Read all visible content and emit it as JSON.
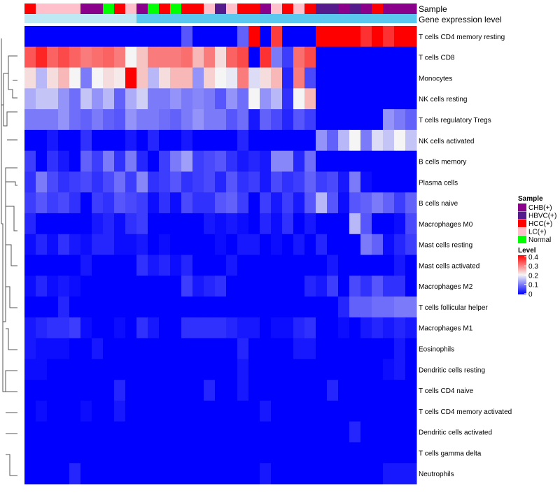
{
  "chart_data": {
    "type": "heatmap",
    "title": "",
    "annotation_labels": {
      "sample": "Sample",
      "gene": "Gene expression level"
    },
    "rows": [
      "T cells CD4 memory resting",
      "T cells CD8",
      "Monocytes",
      "NK cells resting",
      "T cells regulatory  Tregs",
      "NK cells activated",
      "B cells memory",
      "Plasma cells",
      "B cells naive",
      "Macrophages M0",
      "Mast cells resting",
      "Mast cells activated",
      "Macrophages M2",
      "T cells follicular helper",
      "Macrophages M1",
      "Eosinophils",
      "Dendritic cells resting",
      "T cells CD4 naive",
      "T cells CD4 memory activated",
      "Dendritic cells activated",
      "T cells gamma delta",
      "Neutrophils"
    ],
    "sample_columns": [
      "HCC(+)",
      "LC(+)",
      "LC(+)",
      "LC(+)",
      "LC(+)",
      "CHB(+)",
      "CHB(+)",
      "Normal",
      "HCC(+)",
      "LC(+)",
      "CHB(+)",
      "Normal",
      "HCC(+)",
      "Normal",
      "HCC(+)",
      "HCC(+)",
      "LC(+)",
      "HBVC(+)",
      "LC(+)",
      "HCC(+)",
      "HCC(+)",
      "CHB(+)",
      "LC(+)",
      "HCC(+)",
      "LC(+)",
      "HCC(+)",
      "HBVC(+)",
      "HBVC(+)",
      "CHB(+)",
      "HBVC(+)",
      "CHB(+)",
      "HCC(+)",
      "CHB(+)",
      "CHB(+)",
      "CHB(+)"
    ],
    "gene_level_columns": [
      0.5,
      0.5,
      0.5,
      0.5,
      0.5,
      0.5,
      0.5,
      0.5,
      0.5,
      0.5,
      1,
      1,
      1,
      1,
      1,
      1,
      1,
      1,
      1,
      1,
      1,
      1,
      1,
      1,
      1,
      1,
      1,
      1,
      1,
      1,
      1,
      1,
      1,
      1,
      1
    ],
    "values": [
      [
        0,
        0,
        0,
        0,
        0,
        0,
        0,
        0,
        0,
        0,
        0,
        0,
        0,
        0,
        0.07,
        0,
        0,
        0,
        0,
        0.08,
        0.4,
        0,
        0.35,
        0,
        0,
        0,
        0.4,
        0.4,
        0.4,
        0.4,
        0.36,
        0.4,
        0.36,
        0.4,
        0.4
      ],
      [
        0.33,
        0.37,
        0.32,
        0.34,
        0.32,
        0.3,
        0.31,
        0.32,
        0.3,
        0.2,
        0.24,
        0.3,
        0.3,
        0.3,
        0.31,
        0.25,
        0.3,
        0.22,
        0.32,
        0.34,
        0,
        0.36,
        0.1,
        0.05,
        0.31,
        0.34,
        0,
        0,
        0,
        0,
        0,
        0,
        0,
        0,
        0
      ],
      [
        0.22,
        0.15,
        0.22,
        0.25,
        0.2,
        0.1,
        0.2,
        0.22,
        0.21,
        0.4,
        0.24,
        0.15,
        0.22,
        0.25,
        0.25,
        0.12,
        0.23,
        0.2,
        0.19,
        0.3,
        0.18,
        0.22,
        0.25,
        0.03,
        0.3,
        0.06,
        0,
        0,
        0,
        0,
        0,
        0,
        0,
        0,
        0
      ],
      [
        0.14,
        0.16,
        0.16,
        0.12,
        0.09,
        0.16,
        0.12,
        0.15,
        0.08,
        0.14,
        0.17,
        0.1,
        0.1,
        0.12,
        0.1,
        0.11,
        0.1,
        0.07,
        0.12,
        0.09,
        0.2,
        0.12,
        0.15,
        0.04,
        0.2,
        0.25,
        0,
        0,
        0,
        0,
        0,
        0,
        0,
        0,
        0
      ],
      [
        0.1,
        0.1,
        0.1,
        0.12,
        0.09,
        0.08,
        0.1,
        0.08,
        0.07,
        0.12,
        0.1,
        0.1,
        0.09,
        0.08,
        0.1,
        0.12,
        0.1,
        0.1,
        0.07,
        0.09,
        0.02,
        0.08,
        0.06,
        0.03,
        0.07,
        0.05,
        0,
        0,
        0,
        0,
        0,
        0,
        0.12,
        0.1,
        0.08
      ],
      [
        0,
        0,
        0.02,
        0,
        0,
        0.04,
        0,
        0,
        0,
        0.02,
        0,
        0.03,
        0,
        0,
        0.02,
        0,
        0,
        0,
        0,
        0.03,
        0,
        0,
        0,
        0,
        0,
        0,
        0.12,
        0.08,
        0.15,
        0.2,
        0.1,
        0.18,
        0.16,
        0.2,
        0.16
      ],
      [
        0.05,
        0,
        0.04,
        0.02,
        0,
        0.08,
        0.05,
        0.1,
        0.04,
        0.1,
        0.03,
        0,
        0.05,
        0.1,
        0.13,
        0.05,
        0.06,
        0.07,
        0.04,
        0.02,
        0.03,
        0.02,
        0.11,
        0.11,
        0.03,
        0.09,
        0,
        0,
        0,
        0,
        0,
        0,
        0,
        0,
        0
      ],
      [
        0.04,
        0.1,
        0.06,
        0.04,
        0.05,
        0.06,
        0.04,
        0.06,
        0.09,
        0.05,
        0.11,
        0.04,
        0.05,
        0.07,
        0.04,
        0.05,
        0.06,
        0.03,
        0.07,
        0.04,
        0.05,
        0.02,
        0.06,
        0.04,
        0.05,
        0.08,
        0.05,
        0.06,
        0.02,
        0.1,
        0.01,
        0,
        0,
        0,
        0
      ],
      [
        0.05,
        0.07,
        0.05,
        0.06,
        0.04,
        0.0,
        0.05,
        0.04,
        0.07,
        0.06,
        0.05,
        0.01,
        0.04,
        0.01,
        0.06,
        0.04,
        0.04,
        0.07,
        0.08,
        0.05,
        0.0,
        0.05,
        0.02,
        0.05,
        0.02,
        0.07,
        0.15,
        0.07,
        0.01,
        0.07,
        0.08,
        0.1,
        0.08,
        0.05,
        0.08
      ],
      [
        0.03,
        0,
        0,
        0,
        0,
        0,
        0.02,
        0.03,
        0.01,
        0.04,
        0.05,
        0,
        0,
        0,
        0,
        0,
        0.02,
        0.01,
        0.02,
        0.01,
        0,
        0.03,
        0.01,
        0.04,
        0,
        0.02,
        0,
        0,
        0,
        0.15,
        0.07,
        0,
        0,
        0.01,
        0.06
      ],
      [
        0.01,
        0.03,
        0.01,
        0.04,
        0.02,
        0.01,
        0.03,
        0.03,
        0.01,
        0.01,
        0.02,
        0,
        0.01,
        0,
        0,
        0,
        0,
        0.01,
        0,
        0.02,
        0.02,
        0,
        0.01,
        0,
        0.02,
        0,
        0.03,
        0,
        0,
        0,
        0.1,
        0.08,
        0.01,
        0.03,
        0.05
      ],
      [
        0,
        0,
        0,
        0,
        0,
        0.02,
        0,
        0,
        0,
        0,
        0.04,
        0.02,
        0.03,
        0.01,
        0.03,
        0,
        0,
        0,
        0.02,
        0,
        0,
        0,
        0,
        0,
        0,
        0,
        0,
        0.02,
        0,
        0,
        0,
        0,
        0,
        0.02,
        0
      ],
      [
        0.01,
        0.03,
        0.01,
        0.02,
        0.01,
        0,
        0,
        0,
        0,
        0,
        0,
        0,
        0,
        0,
        0.05,
        0.02,
        0.03,
        0.04,
        0,
        0,
        0,
        0,
        0,
        0,
        0,
        0.03,
        0.02,
        0.05,
        0,
        0.06,
        0.04,
        0.07,
        0.04,
        0.04,
        0
      ],
      [
        0,
        0,
        0,
        0.03,
        0,
        0,
        0,
        0,
        0,
        0,
        0,
        0,
        0,
        0,
        0,
        0,
        0,
        0,
        0,
        0,
        0,
        0,
        0,
        0,
        0,
        0,
        0,
        0,
        0.03,
        0.08,
        0.08,
        0.09,
        0.09,
        0.1,
        0.1
      ],
      [
        0.02,
        0.03,
        0.04,
        0.04,
        0.05,
        0.01,
        0,
        0,
        0.01,
        0,
        0.04,
        0.02,
        0,
        0,
        0.04,
        0.04,
        0.04,
        0.04,
        0.03,
        0.02,
        0.02,
        0,
        0.01,
        0.01,
        0.03,
        0.04,
        0,
        0,
        0.01,
        0,
        0.02,
        0.03,
        0.02,
        0.03,
        0.02
      ],
      [
        0.02,
        0.01,
        0.01,
        0.01,
        0,
        0,
        0.02,
        0,
        0,
        0,
        0,
        0,
        0,
        0,
        0,
        0,
        0,
        0,
        0,
        0.03,
        0,
        0,
        0,
        0,
        0.02,
        0.02,
        0,
        0,
        0,
        0,
        0,
        0,
        0,
        0.02,
        0
      ],
      [
        0.01,
        0.01,
        0,
        0,
        0,
        0,
        0,
        0,
        0,
        0,
        0,
        0,
        0,
        0,
        0,
        0,
        0,
        0,
        0,
        0.02,
        0,
        0,
        0,
        0,
        0,
        0,
        0,
        0,
        0,
        0,
        0,
        0,
        0.01,
        0.02,
        0
      ],
      [
        0,
        0,
        0,
        0,
        0,
        0,
        0,
        0,
        0.03,
        0,
        0,
        0,
        0,
        0,
        0,
        0,
        0.03,
        0,
        0,
        0.02,
        0,
        0,
        0,
        0,
        0,
        0,
        0,
        0.03,
        0,
        0,
        0,
        0,
        0,
        0,
        0
      ],
      [
        0,
        0.01,
        0,
        0,
        0,
        0.01,
        0,
        0,
        0.02,
        0,
        0,
        0,
        0,
        0,
        0,
        0,
        0,
        0,
        0,
        0,
        0,
        0.02,
        0,
        0,
        0,
        0,
        0,
        0,
        0,
        0,
        0,
        0,
        0,
        0,
        0
      ],
      [
        0,
        0,
        0,
        0,
        0,
        0,
        0,
        0,
        0,
        0,
        0,
        0,
        0,
        0,
        0,
        0,
        0,
        0,
        0,
        0,
        0,
        0,
        0,
        0,
        0,
        0,
        0,
        0,
        0,
        0.03,
        0,
        0,
        0,
        0,
        0
      ],
      [
        0,
        0,
        0,
        0,
        0,
        0,
        0,
        0,
        0,
        0,
        0,
        0,
        0,
        0,
        0,
        0,
        0,
        0,
        0,
        0,
        0,
        0,
        0,
        0,
        0,
        0,
        0,
        0,
        0,
        0,
        0,
        0,
        0,
        0,
        0
      ],
      [
        0,
        0,
        0,
        0,
        0.03,
        0,
        0,
        0,
        0,
        0,
        0,
        0,
        0,
        0,
        0,
        0,
        0,
        0,
        0,
        0,
        0,
        0.02,
        0,
        0,
        0,
        0,
        0,
        0,
        0,
        0,
        0,
        0,
        0.02,
        0.02,
        0.02
      ]
    ],
    "legend": {
      "sample_title": "Sample",
      "sample_entries": [
        {
          "label": "CHB(+)",
          "color": "#8b008b"
        },
        {
          "label": "HBVC(+)",
          "color": "#551a8b"
        },
        {
          "label": "HCC(+)",
          "color": "#ff0000"
        },
        {
          "label": "LC(+)",
          "color": "#ffc0cb"
        },
        {
          "label": "Normal",
          "color": "#00ff00"
        }
      ],
      "level_title": "Level",
      "level_ticks": [
        "0.4",
        "0.3",
        "0.2",
        "0.1",
        "0"
      ],
      "level_range": [
        0,
        0.4
      ],
      "color_low": "#0000ff",
      "color_mid": "#f5f5f5",
      "color_high": "#ff0000"
    },
    "gene_level_colors": {
      "low": "#bfe8f5",
      "high": "#5ac8ee"
    }
  }
}
